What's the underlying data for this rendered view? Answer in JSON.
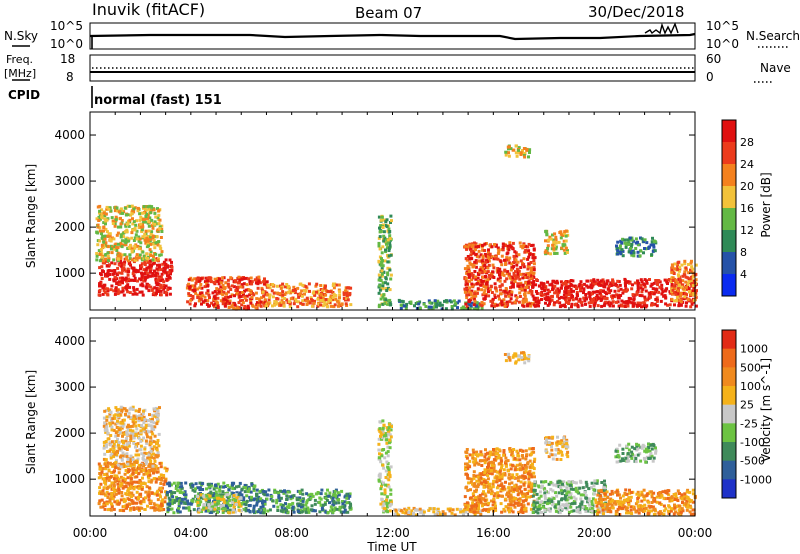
{
  "header": {
    "station": "Inuvik (fitACF)",
    "beam": "Beam 07",
    "date": "30/Dec/2018"
  },
  "noise_panel": {
    "left_label": "N.Sky",
    "right_label": "N.Search",
    "left_ticks": [
      "10^5",
      "10^0"
    ],
    "right_ticks": [
      "10^5",
      "10^0"
    ]
  },
  "freq_panel": {
    "left_label_line1": "Freq.",
    "left_label_line2": "[MHz]",
    "right_label": "Nave",
    "left_ticks": [
      "18",
      "8"
    ],
    "right_ticks": [
      "60",
      "0"
    ]
  },
  "cpid_panel": {
    "label": "CPID",
    "text": "normal (fast) 151"
  },
  "chart_data": [
    {
      "type": "heatmap",
      "panel": "power",
      "ylabel": "Slant Range [km]",
      "xlabel": "",
      "xlim": [
        0,
        24
      ],
      "ylim": [
        200,
        4500
      ],
      "y_ticks": [
        "1000",
        "2000",
        "3000",
        "4000"
      ],
      "x_ticks": [],
      "colorbar_label": "Power [dB]",
      "colorbar_ticks": [
        "4",
        "8",
        "12",
        "16",
        "20",
        "24",
        "28"
      ],
      "colorbar_colors": [
        "#0a2bf0",
        "#2552a8",
        "#2f8a57",
        "#63b844",
        "#f2c23a",
        "#f4811e",
        "#ec3b1c",
        "#e01010"
      ],
      "regions": [
        {
          "t0": 0.3,
          "t1": 3.2,
          "r0": 550,
          "r1": 1350,
          "level": 7
        },
        {
          "t0": 0.2,
          "t1": 2.8,
          "r0": 1300,
          "r1": 2500,
          "level": 4
        },
        {
          "t0": 3.8,
          "t1": 7.0,
          "r0": 250,
          "r1": 950,
          "level": 6
        },
        {
          "t0": 6.8,
          "t1": 10.3,
          "r0": 300,
          "r1": 800,
          "level": 5
        },
        {
          "t0": 11.4,
          "t1": 11.9,
          "r0": 300,
          "r1": 2300,
          "level": 3
        },
        {
          "t0": 12.2,
          "t1": 15.5,
          "r0": 250,
          "r1": 450,
          "level": 2
        },
        {
          "t0": 14.8,
          "t1": 17.6,
          "r0": 300,
          "r1": 1700,
          "level": 6
        },
        {
          "t0": 17.5,
          "t1": 24.0,
          "r0": 300,
          "r1": 900,
          "level": 7
        },
        {
          "t0": 16.4,
          "t1": 17.4,
          "r0": 3550,
          "r1": 3800,
          "level": 4
        },
        {
          "t0": 18.0,
          "t1": 18.9,
          "r0": 1450,
          "r1": 1950,
          "level": 4
        },
        {
          "t0": 20.8,
          "t1": 22.4,
          "r0": 1400,
          "r1": 1800,
          "level": 2
        },
        {
          "t0": 23.0,
          "t1": 24.0,
          "r0": 400,
          "r1": 1300,
          "level": 5
        }
      ]
    },
    {
      "type": "heatmap",
      "panel": "velocity",
      "ylabel": "Slant Range [km]",
      "xlabel": "Time UT",
      "xlim": [
        0,
        24
      ],
      "ylim": [
        200,
        4500
      ],
      "y_ticks": [
        "1000",
        "2000",
        "3000",
        "4000"
      ],
      "x_ticks": [
        "00:00",
        "04:00",
        "08:00",
        "12:00",
        "16:00",
        "20:00",
        "00:00"
      ],
      "colorbar_label": "Velocity [m s^-1]",
      "colorbar_ticks": [
        "1000",
        "500",
        "100",
        "25",
        "-25",
        "-100",
        "-500",
        "-1000"
      ],
      "colorbar_colors": [
        "#1f32c8",
        "#2f5f9a",
        "#3f8a5a",
        "#6cc342",
        "#c8c8c8",
        "#f5b21a",
        "#f08a1e",
        "#ee6a1a",
        "#e22b16"
      ],
      "regions": [
        {
          "t0": 0.3,
          "t1": 3.0,
          "r0": 350,
          "r1": 1400,
          "level": 6
        },
        {
          "t0": 0.5,
          "t1": 2.7,
          "r0": 1300,
          "r1": 2600,
          "level": 5
        },
        {
          "t0": 3.0,
          "t1": 6.5,
          "r0": 300,
          "r1": 950,
          "level": 2
        },
        {
          "t0": 4.2,
          "t1": 6.0,
          "r0": 300,
          "r1": 700,
          "level": 4
        },
        {
          "t0": 6.5,
          "t1": 10.3,
          "r0": 300,
          "r1": 800,
          "level": 2
        },
        {
          "t0": 11.4,
          "t1": 11.9,
          "r0": 300,
          "r1": 2300,
          "level": 4
        },
        {
          "t0": 12.0,
          "t1": 15.5,
          "r0": 250,
          "r1": 400,
          "level": 5
        },
        {
          "t0": 14.8,
          "t1": 17.6,
          "r0": 300,
          "r1": 1700,
          "level": 6
        },
        {
          "t0": 17.5,
          "t1": 20.5,
          "r0": 300,
          "r1": 1000,
          "level": 3
        },
        {
          "t0": 20.0,
          "t1": 24.0,
          "r0": 250,
          "r1": 800,
          "level": 6
        },
        {
          "t0": 16.4,
          "t1": 17.4,
          "r0": 3550,
          "r1": 3800,
          "level": 5
        },
        {
          "t0": 18.0,
          "t1": 18.9,
          "r0": 1450,
          "r1": 1950,
          "level": 5
        },
        {
          "t0": 20.8,
          "t1": 22.4,
          "r0": 1400,
          "r1": 1800,
          "level": 3
        }
      ]
    }
  ]
}
